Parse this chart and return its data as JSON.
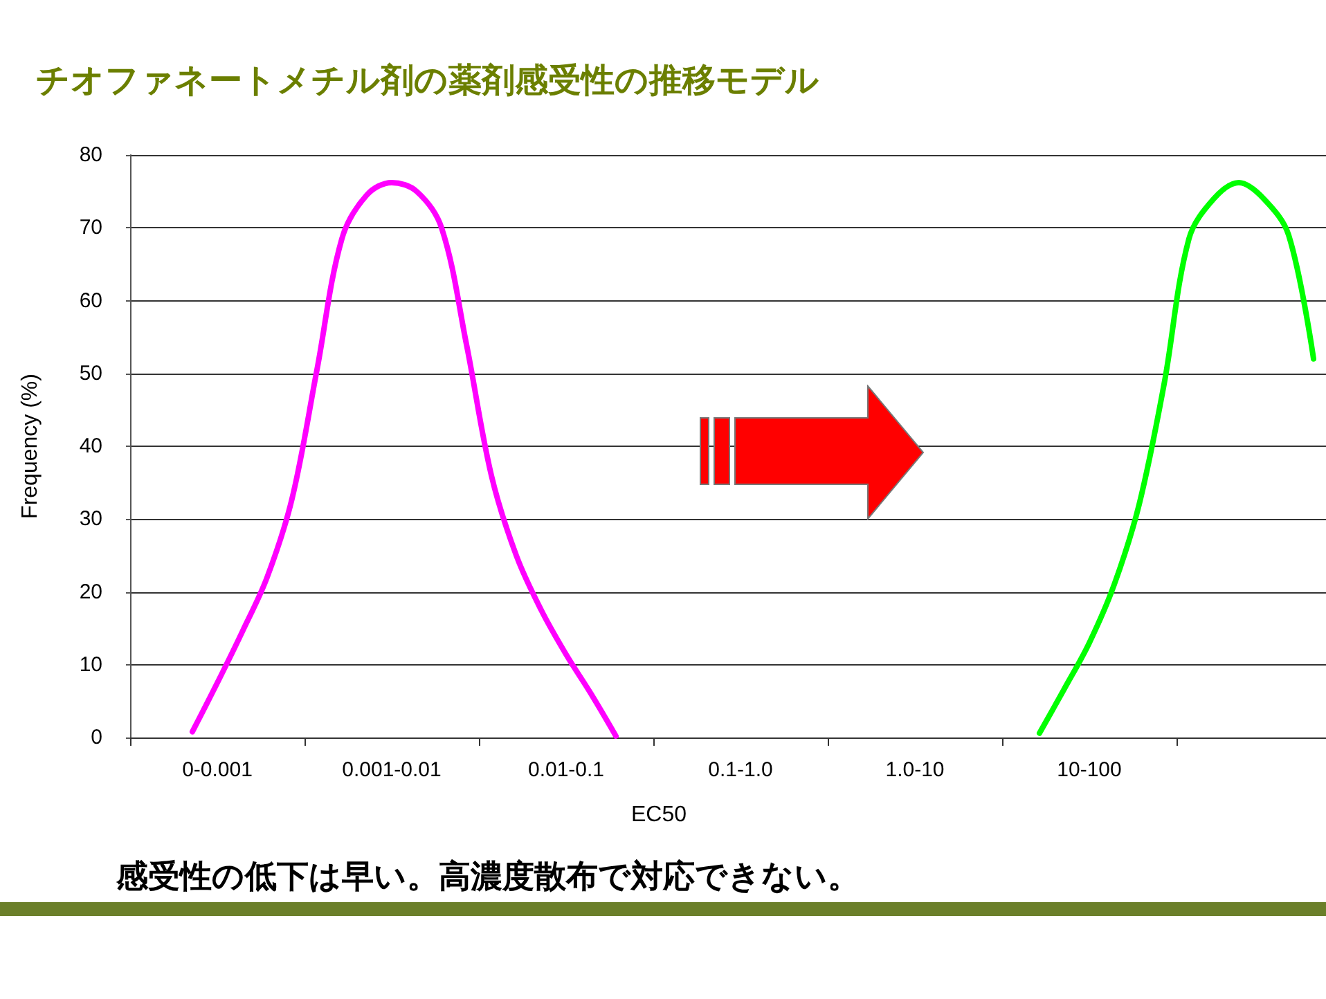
{
  "chart_data": {
    "type": "line",
    "title": "チオファネートメチル剤の薬剤感受性の推移モデル",
    "xlabel": "EC50",
    "ylabel": "Frequency (%)",
    "annotations": [
      "感受性の低下は早い。高濃度散布で対応できない。"
    ],
    "categories": [
      null,
      null,
      null,
      "0-0.001",
      null,
      null,
      null,
      null,
      null,
      null,
      "0.001-0.01",
      null,
      null,
      null,
      null,
      null,
      null,
      "0.01-0.1",
      null,
      null,
      null,
      null,
      null,
      null,
      "0.1-1.0",
      null,
      null,
      null,
      null,
      null,
      null,
      "1.0-10",
      null,
      null,
      null,
      null,
      null,
      null,
      "10-100",
      null,
      null,
      null,
      null,
      null,
      null,
      null,
      null,
      null
    ],
    "ylim": [
      0,
      80
    ],
    "yticks": [
      0,
      10,
      20,
      30,
      40,
      50,
      60,
      70,
      80
    ],
    "grid": "y",
    "marker": "none",
    "line_style": "solid",
    "series": [
      {
        "color": "#ff00ff",
        "values": [
          null,
          null,
          0.8,
          7.5,
          14.5,
          22,
          32.8,
          50.5,
          68.5,
          74.5,
          76.2,
          75,
          70,
          54,
          36,
          25,
          17.5,
          11.4,
          6,
          0.2,
          null,
          null,
          null,
          null,
          null,
          null,
          null,
          null,
          null,
          null,
          null,
          null,
          null,
          null,
          null,
          null,
          null,
          null,
          null,
          null,
          null,
          null,
          null,
          null,
          null,
          null,
          null,
          null
        ]
      },
      {
        "color": "#00ff00",
        "values": [
          null,
          null,
          null,
          null,
          null,
          null,
          null,
          null,
          null,
          null,
          null,
          null,
          null,
          null,
          null,
          null,
          null,
          null,
          null,
          null,
          null,
          null,
          null,
          null,
          null,
          null,
          null,
          null,
          null,
          null,
          null,
          null,
          null,
          null,
          null,
          null,
          0.6,
          6.7,
          13,
          21,
          32,
          48.5,
          68.5,
          74,
          76.2,
          74,
          69,
          52
        ]
      }
    ]
  }
}
